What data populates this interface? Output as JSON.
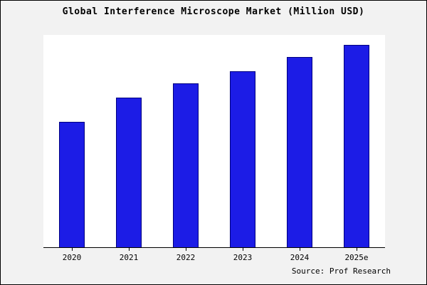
{
  "title": "Global Interference Microscope Market (Million USD)",
  "source": "Source: Prof Research",
  "colors": {
    "bar_fill": "#1c1ce6",
    "bar_edge": "#000080",
    "figure_background": "#f2f2f2",
    "plot_background": "#ffffff",
    "axis": "#000000"
  },
  "chart_data": {
    "type": "bar",
    "title": "Global Interference Microscope Market (Million USD)",
    "categories": [
      "2020",
      "2021",
      "2022",
      "2023",
      "2024",
      "2025e"
    ],
    "values": [
      62,
      74,
      81,
      87,
      94,
      100
    ],
    "xlabel": "",
    "ylabel": "",
    "ylim": [
      0,
      105
    ],
    "grid": false,
    "legend_position": "none",
    "annotation": "Source: Prof Research"
  }
}
